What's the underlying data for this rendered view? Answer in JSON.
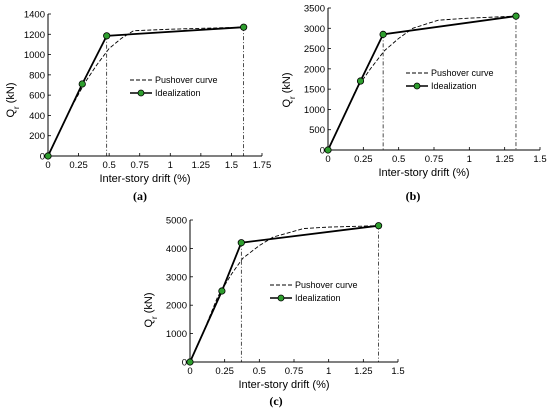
{
  "chart_data": [
    {
      "type": "line",
      "subplot_label": "(a)",
      "xlabel": "Inter-story drift (%)",
      "ylabel": "Q_r (kN)",
      "xlim": [
        0,
        1.75
      ],
      "ylim": [
        0,
        1400
      ],
      "xticks": [
        "0",
        "0.25",
        "0.5",
        "0.75",
        "1",
        "1.25",
        "1.5",
        "1.75"
      ],
      "yticks": [
        "0",
        "200",
        "400",
        "600",
        "800",
        "1000",
        "1200",
        "1400"
      ],
      "legend": {
        "position": "right",
        "entries": [
          "Pushover curve",
          "Idealization"
        ]
      },
      "series": [
        {
          "name": "Pushover curve",
          "style": "dashed",
          "x": [
            0,
            0.1,
            0.2,
            0.3,
            0.4,
            0.5,
            0.6,
            0.7,
            1.0,
            1.6
          ],
          "y": [
            0,
            250,
            500,
            720,
            900,
            1060,
            1160,
            1235,
            1250,
            1270
          ]
        },
        {
          "name": "Idealization",
          "style": "solid-markers",
          "x": [
            0,
            0.28,
            0.48,
            1.6
          ],
          "y": [
            0,
            710,
            1185,
            1270
          ]
        }
      ],
      "vlines": [
        0.48,
        1.6
      ]
    },
    {
      "type": "line",
      "subplot_label": "(b)",
      "xlabel": "Inter-story drift (%)",
      "ylabel": "Q_r (kN)",
      "xlim": [
        0,
        1.5
      ],
      "ylim": [
        0,
        3500
      ],
      "xticks": [
        "0",
        "0.25",
        "0.5",
        "0.75",
        "1",
        "1.25",
        "1.5"
      ],
      "yticks": [
        "0",
        "500",
        "1000",
        "1500",
        "2000",
        "2500",
        "3000",
        "3500"
      ],
      "legend": {
        "position": "right",
        "entries": [
          "Pushover curve",
          "Idealization"
        ]
      },
      "series": [
        {
          "name": "Pushover curve",
          "style": "dashed",
          "x": [
            0,
            0.1,
            0.2,
            0.3,
            0.4,
            0.5,
            0.6,
            0.78,
            1.0,
            1.33
          ],
          "y": [
            0,
            750,
            1500,
            2000,
            2450,
            2750,
            3000,
            3200,
            3250,
            3300
          ]
        },
        {
          "name": "Idealization",
          "style": "solid-markers",
          "x": [
            0,
            0.23,
            0.39,
            1.33
          ],
          "y": [
            0,
            1700,
            2850,
            3300
          ]
        }
      ],
      "vlines": [
        0.39,
        1.33
      ]
    },
    {
      "type": "line",
      "subplot_label": "(c)",
      "xlabel": "Inter-story drift (%)",
      "ylabel": "Q_r (kN)",
      "xlim": [
        0,
        1.5
      ],
      "ylim": [
        0,
        5000
      ],
      "xticks": [
        "0",
        "0.25",
        "0.5",
        "0.75",
        "1",
        "1.25",
        "1.5"
      ],
      "yticks": [
        "0",
        "1000",
        "2000",
        "3000",
        "4000",
        "5000"
      ],
      "legend": {
        "position": "right",
        "entries": [
          "Pushover curve",
          "Idealization"
        ]
      },
      "series": [
        {
          "name": "Pushover curve",
          "style": "dashed",
          "x": [
            0,
            0.1,
            0.2,
            0.3,
            0.38,
            0.5,
            0.6,
            0.82,
            1.0,
            1.36
          ],
          "y": [
            0,
            1100,
            2300,
            3100,
            3650,
            4100,
            4400,
            4700,
            4750,
            4800
          ]
        },
        {
          "name": "Idealization",
          "style": "solid-markers",
          "x": [
            0,
            0.23,
            0.37,
            1.36
          ],
          "y": [
            0,
            2500,
            4200,
            4800
          ]
        }
      ],
      "vlines": [
        0.37,
        1.36
      ]
    }
  ],
  "colors": {
    "marker_fill": "#2e9e2e",
    "line": "#000000"
  }
}
